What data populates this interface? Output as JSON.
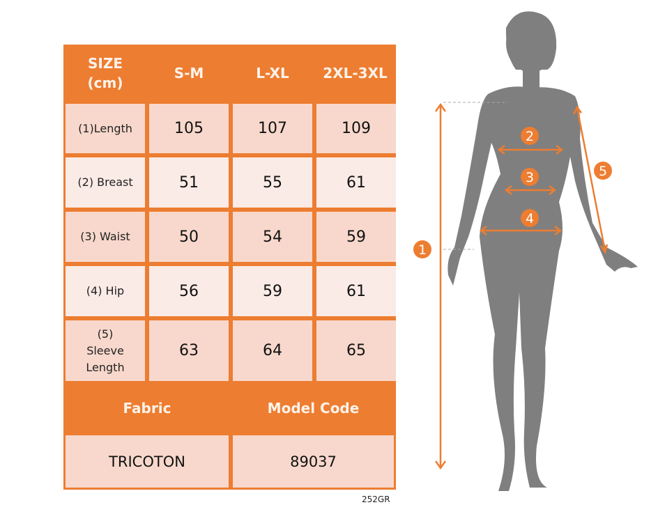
{
  "header": {
    "size_label": "SIZE\n(cm)",
    "columns": [
      "S-M",
      "L-XL",
      "2XL-3XL"
    ]
  },
  "rows": [
    {
      "label": "(1)Length",
      "values": [
        "105",
        "107",
        "109"
      ]
    },
    {
      "label": "(2) Breast",
      "values": [
        "51",
        "55",
        "61"
      ]
    },
    {
      "label": "(3) Waist",
      "values": [
        "50",
        "54",
        "59"
      ]
    },
    {
      "label": "(4) Hip",
      "values": [
        "56",
        "59",
        "61"
      ]
    },
    {
      "label": "(5) Sleeve Length",
      "values": [
        "63",
        "64",
        "65"
      ]
    }
  ],
  "footer": {
    "fabric_label": "Fabric",
    "model_code_label": "Model Code",
    "fabric_value": "TRICOTON",
    "model_code_value": "89037"
  },
  "product_code": "252GR",
  "figure": {
    "markers": [
      "1",
      "2",
      "3",
      "4",
      "5"
    ]
  },
  "colors": {
    "accent": "#ed7d31",
    "row_dark": "#f8d8cc",
    "row_light": "#fbebe6",
    "silhouette": "#7f7f7f"
  }
}
